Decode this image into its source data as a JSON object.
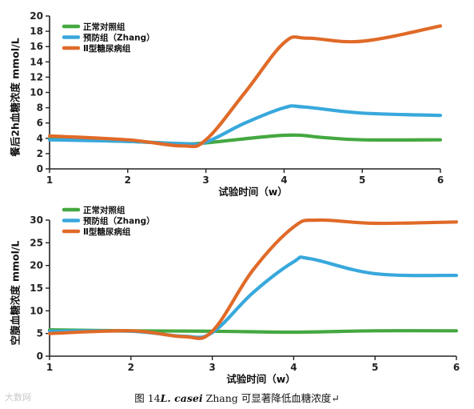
{
  "chart_data": [
    {
      "type": "line",
      "title": "",
      "xlabel": "试验时间（w）",
      "ylabel": "餐后2h血糖浓度 mmol/L",
      "x": [
        1,
        2,
        3,
        4,
        5,
        6
      ],
      "xlim": [
        1,
        6
      ],
      "ylim": [
        0,
        20
      ],
      "yticks": [
        0,
        2,
        4,
        6,
        8,
        10,
        12,
        14,
        16,
        18,
        20
      ],
      "grid": false,
      "legend": "top-left",
      "series": [
        {
          "name": "正常对照组",
          "color": "#44a840",
          "points": [
            [
              1,
              3.9
            ],
            [
              2,
              3.6
            ],
            [
              2.7,
              3.3
            ],
            [
              3,
              3.4
            ],
            [
              4,
              4.4
            ],
            [
              4.5,
              4.1
            ],
            [
              5,
              3.8
            ],
            [
              6,
              3.8
            ]
          ]
        },
        {
          "name": "预防组（Zhang）",
          "color": "#38a8dc",
          "points": [
            [
              1,
              3.8
            ],
            [
              2,
              3.6
            ],
            [
              2.7,
              3.3
            ],
            [
              3,
              3.5
            ],
            [
              3.5,
              6.0
            ],
            [
              4,
              8.0
            ],
            [
              4.25,
              8.1
            ],
            [
              5,
              7.3
            ],
            [
              6,
              7.0
            ]
          ]
        },
        {
          "name": "Ⅱ型糖尿病组",
          "color": "#e06a28",
          "points": [
            [
              1,
              4.3
            ],
            [
              2,
              3.8
            ],
            [
              2.7,
              3.0
            ],
            [
              3,
              3.8
            ],
            [
              3.5,
              10.0
            ],
            [
              4,
              16.5
            ],
            [
              4.3,
              17.1
            ],
            [
              5,
              16.7
            ],
            [
              6,
              18.7
            ]
          ]
        }
      ]
    },
    {
      "type": "line",
      "title": "",
      "xlabel": "试验时间（w）",
      "ylabel": "空腹血糖浓度 mmol/L",
      "x": [
        1,
        2,
        3,
        4,
        5,
        6
      ],
      "xlim": [
        1,
        6
      ],
      "ylim": [
        0,
        30
      ],
      "yticks": [
        0,
        5,
        10,
        15,
        20,
        25,
        30
      ],
      "grid": false,
      "legend": "top-left",
      "series": [
        {
          "name": "正常对照组",
          "color": "#44a840",
          "points": [
            [
              1,
              5.8
            ],
            [
              2,
              5.6
            ],
            [
              3,
              5.5
            ],
            [
              4,
              5.3
            ],
            [
              5,
              5.6
            ],
            [
              6,
              5.6
            ]
          ]
        },
        {
          "name": "预防组（Zhang）",
          "color": "#38a8dc",
          "points": [
            [
              1,
              5.5
            ],
            [
              2,
              5.5
            ],
            [
              2.65,
              4.4
            ],
            [
              3,
              5.2
            ],
            [
              3.5,
              14.0
            ],
            [
              4,
              20.8
            ],
            [
              4.2,
              21.5
            ],
            [
              5,
              18.2
            ],
            [
              6,
              17.8
            ]
          ]
        },
        {
          "name": "Ⅱ型糖尿病组",
          "color": "#e06a28",
          "points": [
            [
              1,
              5.0
            ],
            [
              2,
              5.6
            ],
            [
              2.65,
              4.3
            ],
            [
              3,
              5.5
            ],
            [
              3.5,
              19.0
            ],
            [
              4,
              28.5
            ],
            [
              4.3,
              30.0
            ],
            [
              5,
              29.3
            ],
            [
              6,
              29.6
            ]
          ]
        }
      ]
    }
  ],
  "caption": {
    "prefix": "图 14",
    "species": "L. casei",
    "rest": "Zhang 可显著降低血糖浓度",
    "end_mark": "↵"
  },
  "watermark": "大数网"
}
